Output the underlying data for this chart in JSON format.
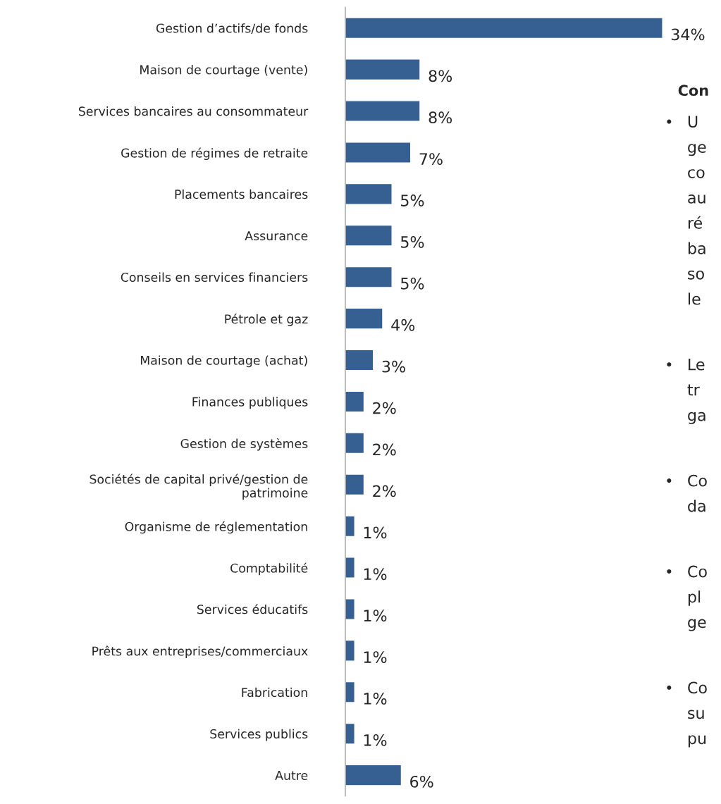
{
  "chart_data": {
    "type": "bar",
    "orientation": "horizontal",
    "categories": [
      "Gestion d’actifs/de fonds",
      "Maison de courtage (vente)",
      "Services bancaires au consommateur",
      "Gestion de régimes de retraite",
      "Placements bancaires",
      "Assurance",
      "Conseils en services financiers",
      "Pétrole et gaz",
      "Maison de courtage (achat)",
      "Finances publiques",
      "Gestion de systèmes",
      "Sociétés de capital privé/gestion de\npatrimoine",
      "Organisme de réglementation",
      "Comptabilité",
      "Services éducatifs",
      "Prêts aux entreprises/commerciaux",
      "Fabrication",
      "Services publics",
      "Autre"
    ],
    "values": [
      34,
      8,
      8,
      7,
      5,
      5,
      5,
      4,
      3,
      2,
      2,
      2,
      1,
      1,
      1,
      1,
      1,
      1,
      6
    ],
    "value_labels": [
      "34%",
      "8%",
      "8%",
      "7%",
      "5%",
      "5%",
      "5%",
      "4%",
      "3%",
      "2%",
      "2%",
      "2%",
      "1%",
      "1%",
      "1%",
      "1%",
      "1%",
      "1%",
      "6%"
    ],
    "color": "#376092",
    "tick_labels": "y",
    "grid": false,
    "legend": false,
    "annotations": [
      "Con",
      "•\tU\nge\nco\nau\nré\nba\nso\nle",
      "•\tLe\ntr\nga",
      "•\tCo\nda",
      "•\tCo\npl\nge",
      "•\tCo\nsu\npu"
    ]
  }
}
